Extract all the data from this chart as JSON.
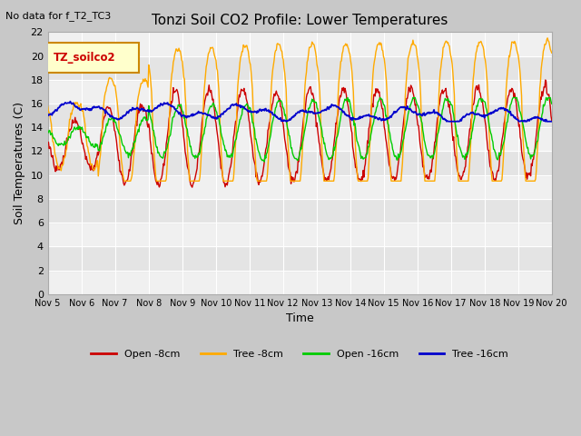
{
  "title": "Tonzi Soil CO2 Profile: Lower Temperatures",
  "subtitle": "No data for f_T2_TC3",
  "xlabel": "Time",
  "ylabel": "Soil Temperatures (C)",
  "legend_label": "TZ_soilco2",
  "ylim": [
    0,
    22
  ],
  "yticks": [
    0,
    2,
    4,
    6,
    8,
    10,
    12,
    14,
    16,
    18,
    20,
    22
  ],
  "xtick_labels": [
    "Nov 5",
    "Nov 6",
    "Nov 7",
    "Nov 8",
    "Nov 9",
    "Nov 10",
    "Nov 11",
    "Nov 12",
    "Nov 13",
    "Nov 14",
    "Nov 15",
    "Nov 16",
    "Nov 17",
    "Nov 18",
    "Nov 19",
    "Nov 20"
  ],
  "n_days": 15,
  "colors": {
    "open_8cm": "#cc0000",
    "tree_8cm": "#ffaa00",
    "open_16cm": "#00cc00",
    "tree_16cm": "#0000cc"
  },
  "legend_entries": [
    "Open -8cm",
    "Tree -8cm",
    "Open -16cm",
    "Tree -16cm"
  ],
  "band_colors": [
    "#f0f0f0",
    "#e4e4e4"
  ],
  "fig_bg": "#c8c8c8",
  "plot_bg": "#e8e8e8"
}
